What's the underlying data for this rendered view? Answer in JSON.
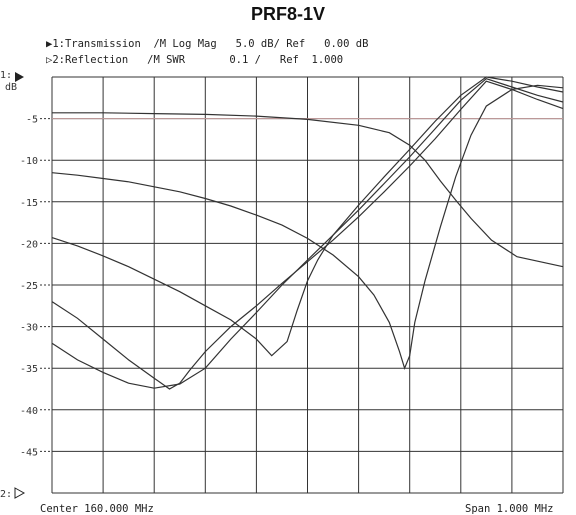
{
  "header": {
    "title": "PRF8-1V",
    "line1": "▶1:Transmission  /M Log Mag   5.0 dB/ Ref   0.00 dB",
    "line2": "▷2:Reflection   /M SWR       0.1 /   Ref  1.000"
  },
  "axis": {
    "top_marker": "1:",
    "unit": "dB",
    "bottom_marker": "2:",
    "center_text": "Center 160.000 MHz",
    "span_text": "Span 1.000 MHz"
  },
  "colors": {
    "grid": "#333333",
    "trace": "#333333",
    "ref_line": "#c8a0a0"
  },
  "chart_data": {
    "type": "line",
    "title": "PRF8-1V",
    "xlabel": "",
    "ylabel": "dB",
    "ylim": [
      -50,
      0
    ],
    "xlim": [
      0,
      10
    ],
    "yticks": [
      {
        "v": 0,
        "label": ""
      },
      {
        "v": -5,
        "label": "-5"
      },
      {
        "v": -10,
        "label": "-10"
      },
      {
        "v": -15,
        "label": "-15"
      },
      {
        "v": -20,
        "label": "-20"
      },
      {
        "v": -25,
        "label": "-25"
      },
      {
        "v": -30,
        "label": "-30"
      },
      {
        "v": -35,
        "label": "-35"
      },
      {
        "v": -40,
        "label": "-40"
      },
      {
        "v": -45,
        "label": "-45"
      },
      {
        "v": -50,
        "label": ""
      }
    ],
    "reference_level": -5,
    "grid": true,
    "series": [
      {
        "x": [
          0,
          1,
          2,
          3,
          4,
          5,
          6,
          6.6,
          7.0,
          7.3,
          7.6,
          7.9,
          8.2,
          8.6,
          9.1,
          10
        ],
        "y": [
          -4.3,
          -4.3,
          -4.4,
          -4.5,
          -4.7,
          -5.1,
          -5.8,
          -6.7,
          -8.2,
          -10.0,
          -12.5,
          -14.8,
          -17.0,
          -19.6,
          -21.6,
          -22.8
        ]
      },
      {
        "x": [
          0,
          0.5,
          1,
          1.5,
          2,
          2.5,
          3,
          3.5,
          4,
          4.5,
          5,
          5.5,
          6,
          6.3,
          6.6,
          6.8,
          6.9,
          7.0,
          7.1,
          7.3,
          7.6,
          7.9,
          8.2,
          8.5,
          9,
          9.5,
          10
        ],
        "y": [
          -11.5,
          -11.8,
          -12.2,
          -12.6,
          -13.2,
          -13.8,
          -14.6,
          -15.5,
          -16.6,
          -17.8,
          -19.4,
          -21.4,
          -24.0,
          -26.2,
          -29.5,
          -33.0,
          -35.0,
          -33.5,
          -29.5,
          -24.5,
          -18.0,
          -12.0,
          -7.0,
          -3.5,
          -1.5,
          -1.0,
          -1.3
        ]
      },
      {
        "x": [
          0,
          0.5,
          1,
          1.5,
          2,
          2.5,
          3,
          3.5,
          4,
          4.3,
          4.6,
          4.8,
          5.0,
          5.2,
          5.5,
          6,
          6.5,
          7,
          7.5,
          8,
          8.5,
          9,
          9.5,
          10
        ],
        "y": [
          -19.3,
          -20.3,
          -21.5,
          -22.8,
          -24.3,
          -25.8,
          -27.5,
          -29.2,
          -31.5,
          -33.5,
          -31.8,
          -28.0,
          -24.5,
          -22.0,
          -19.0,
          -15.4,
          -12.0,
          -8.7,
          -5.3,
          -2.2,
          0,
          -0.5,
          -1.2,
          -1.8
        ]
      },
      {
        "x": [
          0,
          0.5,
          1,
          1.5,
          2,
          2.3,
          2.5,
          2.7,
          3,
          3.5,
          4,
          4.5,
          5,
          5.5,
          6,
          6.5,
          7,
          7.5,
          8,
          8.5,
          9,
          9.5,
          10
        ],
        "y": [
          -27.0,
          -29.0,
          -31.5,
          -34.0,
          -36.2,
          -37.5,
          -36.8,
          -35.2,
          -33.0,
          -30.0,
          -27.5,
          -24.8,
          -22.2,
          -19.6,
          -16.8,
          -13.8,
          -10.7,
          -7.4,
          -3.9,
          -0.5,
          -1.5,
          -2.7,
          -3.8
        ]
      },
      {
        "x": [
          0,
          0.5,
          1,
          1.5,
          2,
          2.5,
          3,
          3.5,
          4,
          4.5,
          5,
          5.5,
          6,
          6.5,
          7,
          7.5,
          8,
          8.5,
          9,
          9.5,
          10
        ],
        "y": [
          -32.0,
          -34.0,
          -35.5,
          -36.8,
          -37.4,
          -36.9,
          -35.0,
          -31.5,
          -28.3,
          -25.0,
          -22.0,
          -19.0,
          -16.0,
          -12.8,
          -9.6,
          -6.2,
          -2.8,
          -0.2,
          -1.2,
          -2.2,
          -3.0
        ]
      }
    ]
  }
}
